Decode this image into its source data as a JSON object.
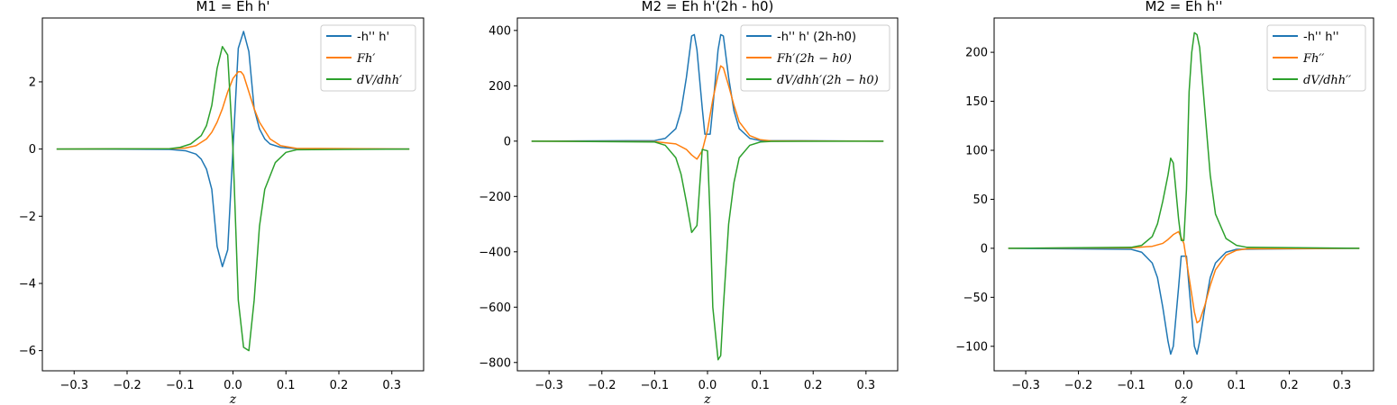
{
  "colors": {
    "blue": "#1f77b4",
    "orange": "#ff7f0e",
    "green": "#2ca02c"
  },
  "chart_data": [
    {
      "type": "line",
      "title": "M1 = Eh h'",
      "xlabel": "z",
      "ylabel": "",
      "xlim": [
        -0.36,
        0.36
      ],
      "ylim": [
        -6.6,
        3.9
      ],
      "xticks": [
        -0.3,
        -0.2,
        -0.1,
        0.0,
        0.1,
        0.2,
        0.3
      ],
      "xtick_labels": [
        "−0.3",
        "−0.2",
        "−0.1",
        "0.0",
        "0.1",
        "0.2",
        "0.3"
      ],
      "yticks": [
        -6,
        -4,
        -2,
        0,
        2
      ],
      "ytick_labels": [
        "−6",
        "−4",
        "−2",
        "0",
        "2"
      ],
      "legend_position": "top-right",
      "series": [
        {
          "name": "-h'' h'",
          "math": false,
          "color": "#1f77b4",
          "x": [
            -0.333,
            -0.12,
            -0.09,
            -0.07,
            -0.06,
            -0.05,
            -0.04,
            -0.03,
            -0.02,
            -0.01,
            0.0,
            0.01,
            0.02,
            0.03,
            0.04,
            0.05,
            0.06,
            0.07,
            0.09,
            0.12,
            0.333
          ],
          "y": [
            0,
            -0.01,
            -0.05,
            -0.15,
            -0.3,
            -0.6,
            -1.2,
            -2.9,
            -3.5,
            -3.0,
            0,
            3.0,
            3.5,
            2.9,
            1.2,
            0.6,
            0.3,
            0.15,
            0.05,
            0.01,
            0
          ]
        },
        {
          "name": "Fh′",
          "math": true,
          "color": "#ff7f0e",
          "x": [
            -0.333,
            -0.12,
            -0.09,
            -0.07,
            -0.05,
            -0.04,
            -0.03,
            -0.02,
            -0.01,
            0.0,
            0.01,
            0.015,
            0.02,
            0.03,
            0.04,
            0.05,
            0.07,
            0.09,
            0.12,
            0.333
          ],
          "y": [
            0,
            0.01,
            0.03,
            0.1,
            0.3,
            0.5,
            0.8,
            1.2,
            1.7,
            2.1,
            2.3,
            2.3,
            2.2,
            1.7,
            1.2,
            0.8,
            0.3,
            0.1,
            0.02,
            0
          ]
        },
        {
          "name": "dV/dhh′",
          "math": true,
          "color": "#2ca02c",
          "x": [
            -0.333,
            -0.12,
            -0.1,
            -0.08,
            -0.06,
            -0.05,
            -0.04,
            -0.03,
            -0.02,
            -0.01,
            0.0,
            0.01,
            0.02,
            0.03,
            0.04,
            0.05,
            0.06,
            0.08,
            0.1,
            0.12,
            0.333
          ],
          "y": [
            0,
            0.01,
            0.05,
            0.15,
            0.4,
            0.7,
            1.3,
            2.4,
            3.05,
            2.8,
            0,
            -4.5,
            -5.9,
            -6.0,
            -4.5,
            -2.3,
            -1.2,
            -0.4,
            -0.1,
            -0.02,
            0
          ]
        }
      ]
    },
    {
      "type": "line",
      "title": "M2 = Eh h'(2h - h0)",
      "xlabel": "z",
      "ylabel": "",
      "xlim": [
        -0.36,
        0.36
      ],
      "ylim": [
        -830,
        445
      ],
      "xticks": [
        -0.3,
        -0.2,
        -0.1,
        0.0,
        0.1,
        0.2,
        0.3
      ],
      "xtick_labels": [
        "−0.3",
        "−0.2",
        "−0.1",
        "0.0",
        "0.1",
        "0.2",
        "0.3"
      ],
      "yticks": [
        -800,
        -600,
        -400,
        -200,
        0,
        200,
        400
      ],
      "ytick_labels": [
        "−800",
        "−600",
        "−400",
        "−200",
        "0",
        "200",
        "400"
      ],
      "legend_position": "top-right",
      "series": [
        {
          "name": "-h'' h' (2h-h0)",
          "math": false,
          "color": "#1f77b4",
          "x": [
            -0.333,
            -0.1,
            -0.08,
            -0.06,
            -0.05,
            -0.04,
            -0.03,
            -0.025,
            -0.02,
            -0.01,
            -0.005,
            0.0,
            0.005,
            0.01,
            0.02,
            0.025,
            0.03,
            0.04,
            0.05,
            0.06,
            0.08,
            0.1,
            0.333
          ],
          "y": [
            0,
            2,
            10,
            45,
            110,
            230,
            380,
            385,
            330,
            120,
            25,
            25,
            25,
            120,
            330,
            385,
            380,
            230,
            110,
            45,
            10,
            2,
            0
          ]
        },
        {
          "name": "Fh′(2h − h0)",
          "math": true,
          "color": "#ff7f0e",
          "x": [
            -0.333,
            -0.1,
            -0.06,
            -0.04,
            -0.03,
            -0.02,
            -0.01,
            0.0,
            0.01,
            0.02,
            0.025,
            0.03,
            0.04,
            0.05,
            0.06,
            0.08,
            0.1,
            0.12,
            0.333
          ],
          "y": [
            0,
            -2,
            -10,
            -30,
            -50,
            -65,
            -35,
            40,
            150,
            240,
            272,
            265,
            200,
            130,
            70,
            20,
            5,
            1,
            0
          ]
        },
        {
          "name": "dV/dhh′(2h − h0)",
          "math": true,
          "color": "#2ca02c",
          "x": [
            -0.333,
            -0.1,
            -0.08,
            -0.06,
            -0.05,
            -0.04,
            -0.03,
            -0.02,
            -0.01,
            0.0,
            0.005,
            0.01,
            0.02,
            0.025,
            0.03,
            0.04,
            0.05,
            0.06,
            0.08,
            0.1,
            0.12,
            0.333
          ],
          "y": [
            0,
            -3,
            -15,
            -60,
            -120,
            -220,
            -330,
            -305,
            -30,
            -35,
            -280,
            -600,
            -790,
            -775,
            -600,
            -300,
            -150,
            -60,
            -15,
            -3,
            -1,
            0
          ]
        }
      ]
    },
    {
      "type": "line",
      "title": "M2 = Eh h''",
      "xlabel": "z",
      "ylabel": "",
      "xlim": [
        -0.36,
        0.36
      ],
      "ylim": [
        -125,
        235
      ],
      "xticks": [
        -0.3,
        -0.2,
        -0.1,
        0.0,
        0.1,
        0.2,
        0.3
      ],
      "xtick_labels": [
        "−0.3",
        "−0.2",
        "−0.1",
        "0.0",
        "0.1",
        "0.2",
        "0.3"
      ],
      "yticks": [
        -100,
        -50,
        0,
        50,
        100,
        150,
        200
      ],
      "ytick_labels": [
        "−100",
        "−50",
        "0",
        "50",
        "100",
        "150",
        "200"
      ],
      "legend_position": "top-right",
      "series": [
        {
          "name": "-h'' h''",
          "math": false,
          "color": "#1f77b4",
          "x": [
            -0.333,
            -0.1,
            -0.08,
            -0.06,
            -0.05,
            -0.04,
            -0.03,
            -0.025,
            -0.02,
            -0.01,
            -0.005,
            0.0,
            0.005,
            0.01,
            0.02,
            0.025,
            0.03,
            0.04,
            0.05,
            0.06,
            0.08,
            0.1,
            0.333
          ],
          "y": [
            0,
            -1,
            -4,
            -15,
            -30,
            -60,
            -95,
            -108,
            -100,
            -40,
            -8,
            -8,
            -8,
            -40,
            -100,
            -108,
            -95,
            -60,
            -30,
            -15,
            -4,
            -1,
            0
          ]
        },
        {
          "name": "Fh′′",
          "math": true,
          "color": "#ff7f0e",
          "x": [
            -0.333,
            -0.1,
            -0.06,
            -0.04,
            -0.03,
            -0.02,
            -0.01,
            0.0,
            0.01,
            0.02,
            0.025,
            0.03,
            0.04,
            0.05,
            0.06,
            0.08,
            0.1,
            0.12,
            0.333
          ],
          "y": [
            0,
            0.5,
            2,
            5,
            9,
            14,
            17,
            5,
            -30,
            -65,
            -76,
            -74,
            -58,
            -38,
            -22,
            -7,
            -2,
            -0.5,
            0
          ]
        },
        {
          "name": "dV/dhh′′",
          "math": true,
          "color": "#2ca02c",
          "x": [
            -0.333,
            -0.1,
            -0.08,
            -0.06,
            -0.05,
            -0.04,
            -0.03,
            -0.025,
            -0.02,
            -0.01,
            -0.005,
            0.0,
            0.005,
            0.01,
            0.015,
            0.02,
            0.025,
            0.03,
            0.04,
            0.05,
            0.06,
            0.08,
            0.1,
            0.12,
            0.333
          ],
          "y": [
            0,
            1,
            3,
            12,
            25,
            48,
            75,
            92,
            87,
            30,
            8,
            8,
            60,
            160,
            200,
            220,
            218,
            205,
            140,
            75,
            35,
            10,
            3,
            1,
            0
          ]
        }
      ]
    }
  ]
}
